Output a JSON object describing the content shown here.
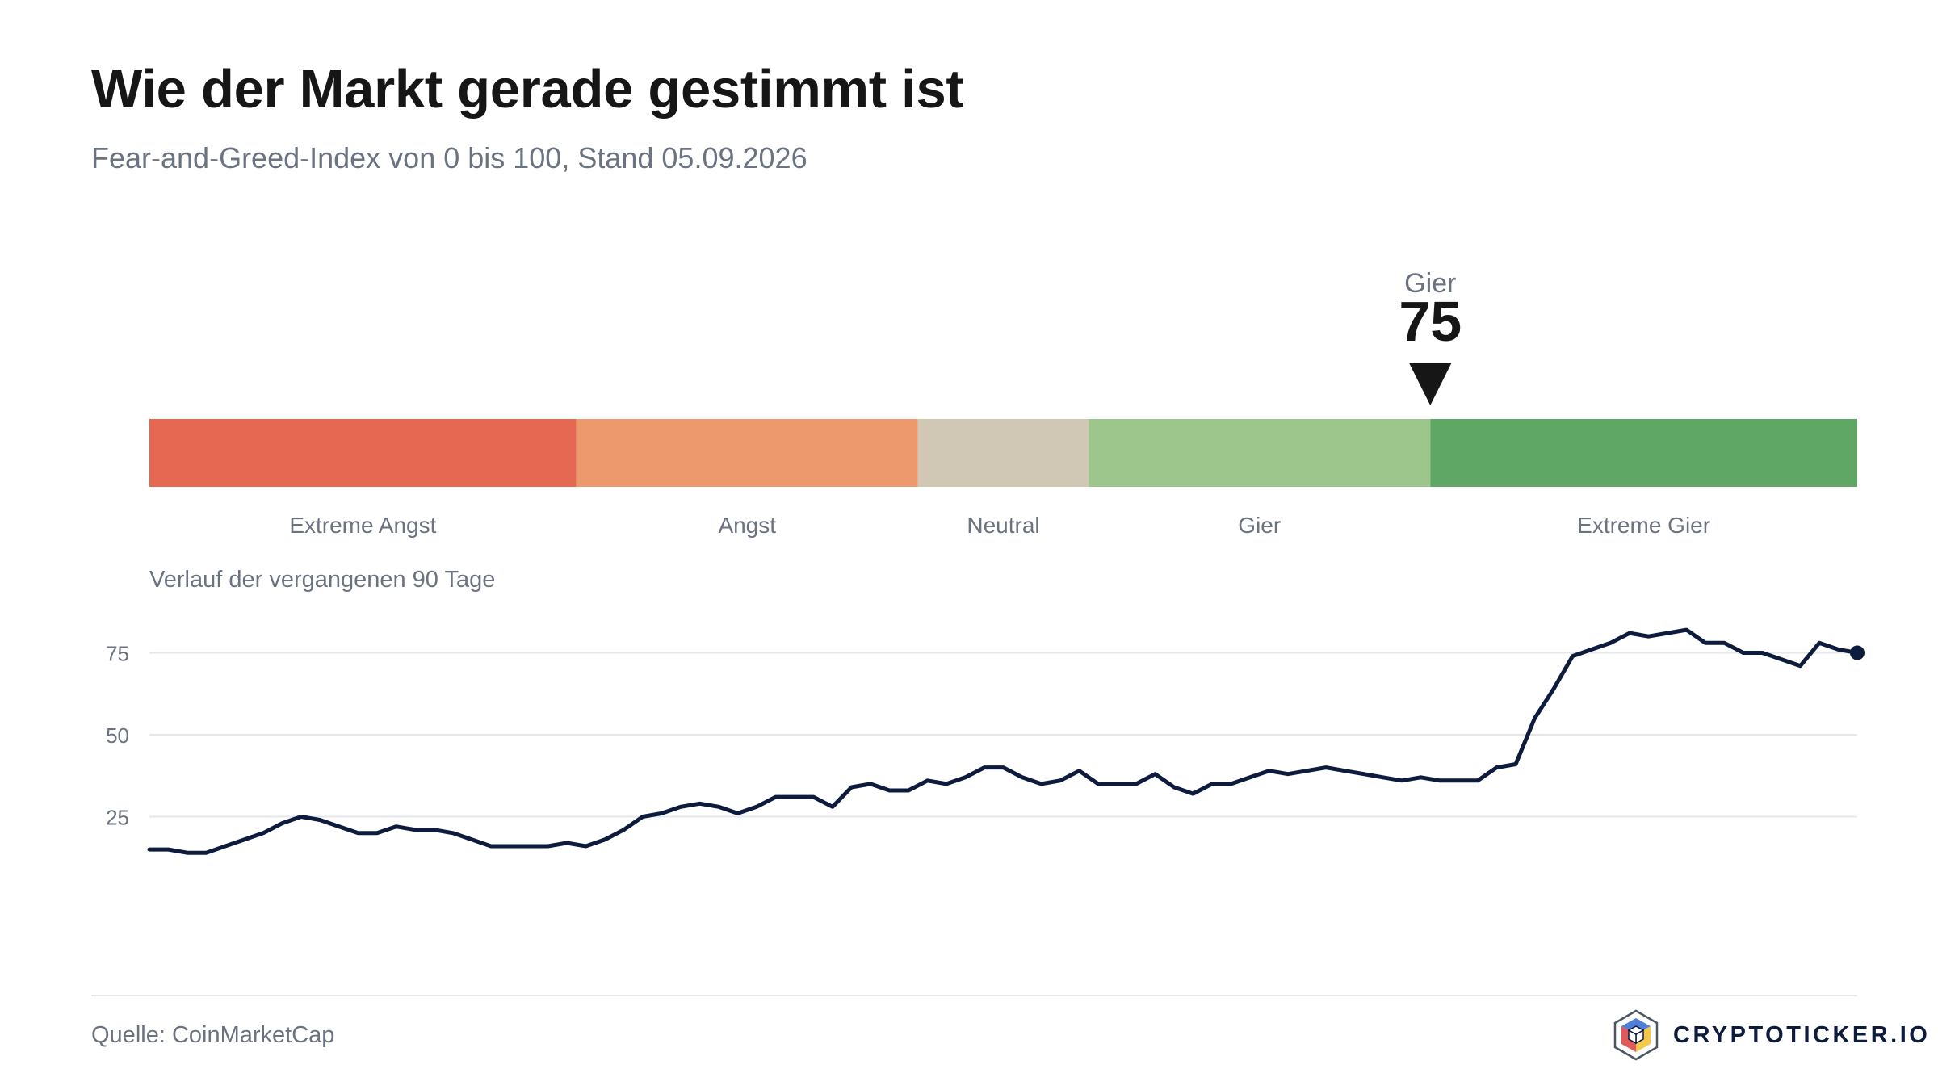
{
  "header": {
    "title": "Wie der Markt gerade gestimmt ist",
    "subtitle": "Fear-and-Greed-Index von 0 bis 100, Stand 05.09.2026"
  },
  "chart_data": [
    {
      "type": "gauge",
      "range": [
        0,
        100
      ],
      "value": 75,
      "value_label": "Gier",
      "segments": [
        {
          "label": "Extreme Angst",
          "from": 0,
          "to": 25,
          "color": "#e76852"
        },
        {
          "label": "Angst",
          "from": 25,
          "to": 45,
          "color": "#ee986d"
        },
        {
          "label": "Neutral",
          "from": 45,
          "to": 55,
          "color": "#d0c8b5"
        },
        {
          "label": "Gier",
          "from": 55,
          "to": 75,
          "color": "#9cc68b"
        },
        {
          "label": "Extreme Gier",
          "from": 75,
          "to": 100,
          "color": "#5ea765"
        }
      ]
    },
    {
      "type": "line",
      "title": "Verlauf der vergangenen 90 Tage",
      "ylim": [
        0,
        100
      ],
      "yticks": [
        25,
        50,
        75
      ],
      "grid": true,
      "color": "#0d1b3d",
      "values": [
        15,
        15,
        14,
        14,
        16,
        18,
        20,
        23,
        25,
        24,
        22,
        20,
        20,
        22,
        21,
        21,
        20,
        18,
        16,
        16,
        16,
        16,
        17,
        16,
        18,
        21,
        25,
        26,
        28,
        29,
        28,
        26,
        28,
        31,
        31,
        31,
        28,
        34,
        35,
        33,
        33,
        36,
        35,
        37,
        40,
        40,
        37,
        35,
        36,
        39,
        35,
        35,
        35,
        38,
        34,
        32,
        35,
        35,
        37,
        39,
        38,
        39,
        40,
        39,
        38,
        37,
        36,
        37,
        36,
        36,
        36,
        40,
        41,
        55,
        64,
        74,
        76,
        78,
        81,
        80,
        81,
        82,
        78,
        78,
        75,
        75,
        73,
        71,
        78,
        76,
        75
      ]
    }
  ],
  "footer": {
    "source": "Quelle: CoinMarketCap",
    "brand": "CRYPTOTICKER.IO"
  }
}
